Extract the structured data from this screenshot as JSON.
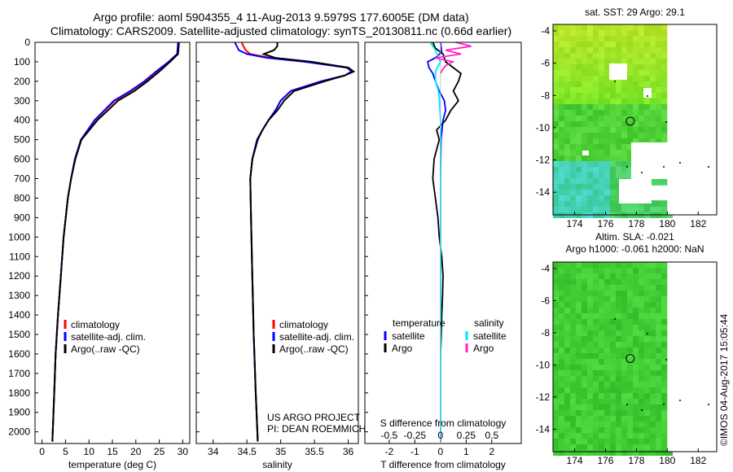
{
  "header": {
    "title_line1": "Argo profile: aoml 5904355_4 11-Aug-2013 9.5979S 177.6005E (DM data)",
    "title_line2": "Climatology: CARS2009. Satellite-adjusted climatology: synTS_20130811.nc (0.66d earlier)"
  },
  "colors": {
    "climatology": "#ff0000",
    "satellite": "#0000ff",
    "argo": "#000000",
    "salinity_sat": "#00e5ff",
    "salinity_argo": "#ff22cc"
  },
  "depth_axis": {
    "ticks": [
      0,
      100,
      200,
      300,
      400,
      500,
      600,
      700,
      800,
      900,
      1000,
      1100,
      1200,
      1300,
      1400,
      1500,
      1600,
      1700,
      1800,
      1900,
      2000
    ]
  },
  "project_text": {
    "line1": "US ARGO PROJECT",
    "line2": "PI: DEAN ROEMMICH"
  },
  "timestamp": "©IMOS 04-Aug-2017 15:05:44",
  "chart_data": [
    {
      "type": "line",
      "xlabel": "temperature (deg C)",
      "xticks": [
        0,
        5,
        10,
        15,
        20,
        25,
        30
      ],
      "xlim": [
        -1.5,
        31.5
      ],
      "ylim": [
        0,
        2060
      ],
      "legend": {
        "position": "bottom-right",
        "entries": [
          "climatology",
          "satellite-adj. clim.",
          "Argo(..raw -QC)"
        ]
      },
      "series": [
        {
          "name": "climatology",
          "depth": [
            0,
            60,
            100,
            150,
            200,
            250,
            300,
            400,
            500,
            600,
            700,
            800,
            1000,
            1200,
            1400,
            1600,
            1800,
            2050
          ],
          "values": [
            29.1,
            28.9,
            27,
            24.5,
            22,
            19,
            15.5,
            11.3,
            8.3,
            7,
            6.2,
            5.5,
            4.6,
            4,
            3.4,
            2.9,
            2.6,
            2.2
          ]
        },
        {
          "name": "satellite-adj. clim.",
          "depth": [
            0,
            60,
            100,
            150,
            200,
            250,
            300,
            400,
            500,
            600,
            700,
            800,
            1000,
            1200,
            1400,
            1600,
            1800,
            2050
          ],
          "values": [
            29.0,
            28.8,
            27,
            24.3,
            21.8,
            18.8,
            15.3,
            11.2,
            8.3,
            7,
            6.2,
            5.5,
            4.6,
            4,
            3.4,
            2.9,
            2.6,
            2.2
          ]
        },
        {
          "name": "Argo(..raw -QC)",
          "depth": [
            0,
            60,
            100,
            150,
            200,
            250,
            300,
            400,
            500,
            600,
            700,
            800,
            1000,
            1200,
            1400,
            1600,
            1800,
            2050
          ],
          "values": [
            29.2,
            29,
            27.3,
            25,
            22.5,
            19.7,
            16.2,
            11.8,
            8.4,
            7.1,
            6.2,
            5.5,
            4.6,
            4,
            3.4,
            2.9,
            2.6,
            2.2
          ]
        }
      ]
    },
    {
      "type": "line",
      "xlabel": "salinity",
      "xticks": [
        34,
        34.5,
        35,
        35.5,
        36
      ],
      "xlim": [
        33.75,
        36.15
      ],
      "ylim": [
        0,
        2060
      ],
      "legend": {
        "position": "bottom-right",
        "entries": [
          "climatology",
          "satellite-adj. clim.",
          "Argo(..raw -QC)"
        ]
      },
      "series": [
        {
          "name": "climatology",
          "depth": [
            0,
            20,
            40,
            60,
            80,
            100,
            130,
            150,
            170,
            200,
            250,
            300,
            350,
            400,
            450,
            500,
            600,
            700,
            900,
            1200,
            1500,
            1800,
            2050
          ],
          "values": [
            34.42,
            34.45,
            34.48,
            34.55,
            34.85,
            35.4,
            36.0,
            36.05,
            35.95,
            35.6,
            35.15,
            35.0,
            34.92,
            34.82,
            34.73,
            34.65,
            34.58,
            34.55,
            34.56,
            34.58,
            34.6,
            34.63,
            34.66
          ]
        },
        {
          "name": "satellite-adj. clim.",
          "depth": [
            0,
            20,
            40,
            60,
            80,
            100,
            130,
            150,
            170,
            200,
            250,
            300,
            350,
            400,
            450,
            500,
            600,
            700,
            900,
            1200,
            1500,
            1800,
            2050
          ],
          "values": [
            34.32,
            34.35,
            34.38,
            34.5,
            34.8,
            35.35,
            35.98,
            36.05,
            35.95,
            35.6,
            35.15,
            35.0,
            34.92,
            34.82,
            34.73,
            34.65,
            34.58,
            34.55,
            34.56,
            34.58,
            34.6,
            34.63,
            34.66
          ]
        },
        {
          "name": "Argo(..raw -QC)",
          "depth": [
            0,
            20,
            40,
            60,
            80,
            100,
            130,
            150,
            170,
            200,
            250,
            300,
            350,
            400,
            450,
            500,
            600,
            700,
            900,
            1200,
            1500,
            1800,
            2050
          ],
          "values": [
            34.95,
            34.95,
            34.9,
            34.75,
            34.92,
            35.45,
            36.0,
            36.08,
            35.95,
            35.65,
            35.2,
            35.05,
            34.95,
            34.82,
            34.73,
            34.66,
            34.58,
            34.55,
            34.56,
            34.58,
            34.6,
            34.63,
            34.66
          ]
        }
      ]
    },
    {
      "type": "line",
      "xlabel": "T difference from climatology",
      "xticks": [
        -2,
        -1,
        0,
        1,
        2
      ],
      "xlabel_top": "S difference from climatology",
      "xticks_top": [
        -0.5,
        -0.25,
        0,
        0.25,
        0.5
      ],
      "xlim": [
        -2.95,
        3.15
      ],
      "ylim": [
        0,
        2060
      ],
      "legend": {
        "position": "bottom",
        "temperature_title": "temperature",
        "salinity_title": "salinity",
        "entries": [
          "satellite",
          "Argo",
          "satellite",
          "Argo"
        ]
      },
      "series": [
        {
          "name": "satellite",
          "group": "temperature",
          "depth": [
            0,
            50,
            80,
            100,
            130,
            160,
            200,
            250,
            300,
            350,
            400,
            500,
            700,
            1000,
            2050
          ],
          "values": [
            0,
            0.05,
            -0.2,
            -0.5,
            -0.45,
            -0.3,
            -0.2,
            -0.05,
            0.15,
            0.2,
            0.1,
            0.02,
            0,
            0,
            0
          ]
        },
        {
          "name": "Argo",
          "group": "temperature",
          "depth": [
            0,
            30,
            60,
            100,
            140,
            160,
            200,
            250,
            300,
            350,
            400,
            450,
            500,
            600,
            700,
            800,
            900,
            1000,
            1100,
            1200,
            1300,
            1400,
            1500,
            1600
          ],
          "values": [
            -0.3,
            -0.2,
            0.1,
            0.2,
            0.6,
            0.8,
            0.7,
            0.5,
            0.7,
            0.4,
            0.2,
            -0.15,
            -0.05,
            -0.25,
            -0.3,
            -0.2,
            -0.1,
            -0.05,
            0.05,
            0.1,
            0.08,
            0.05,
            0.03,
            0
          ]
        },
        {
          "name": "satellite",
          "group": "salinity",
          "depth": [
            0,
            40,
            80,
            100,
            120,
            150,
            200,
            250,
            300,
            400,
            500,
            700,
            1000,
            2050
          ],
          "values": [
            -0.1,
            -0.05,
            -0.02,
            0,
            -0.02,
            -0.05,
            -0.05,
            -0.02,
            -0.01,
            0,
            0,
            0,
            0,
            0
          ]
        },
        {
          "name": "Argo",
          "group": "salinity",
          "depth": [
            0,
            20,
            40,
            60,
            80,
            100,
            120,
            140,
            160
          ],
          "values": [
            0.15,
            0.3,
            0.05,
            0.2,
            -0.05,
            0.12,
            0.05,
            0.02,
            0.0
          ]
        }
      ]
    },
    {
      "type": "heatmap",
      "title": "sat. SST: 29 Argo: 29.1",
      "xticks": [
        174,
        176,
        178,
        180,
        182
      ],
      "yticks": [
        -4,
        -6,
        -8,
        -10,
        -12,
        -14
      ],
      "xlim": [
        172.6,
        183.2
      ],
      "ylim": [
        -15.4,
        -3.6
      ],
      "marker": {
        "lon": 177.6,
        "lat": -9.6
      }
    },
    {
      "type": "heatmap",
      "title_line1": "Altim. SLA: -0.021",
      "title_line2": "Argo h1000: -0.061 h2000: NaN",
      "xticks": [
        174,
        176,
        178,
        180,
        182
      ],
      "yticks": [
        -4,
        -6,
        -8,
        -10,
        -12,
        -14
      ],
      "xlim": [
        172.6,
        183.2
      ],
      "ylim": [
        -15.4,
        -3.6
      ],
      "marker": {
        "lon": 177.6,
        "lat": -9.6
      }
    }
  ]
}
